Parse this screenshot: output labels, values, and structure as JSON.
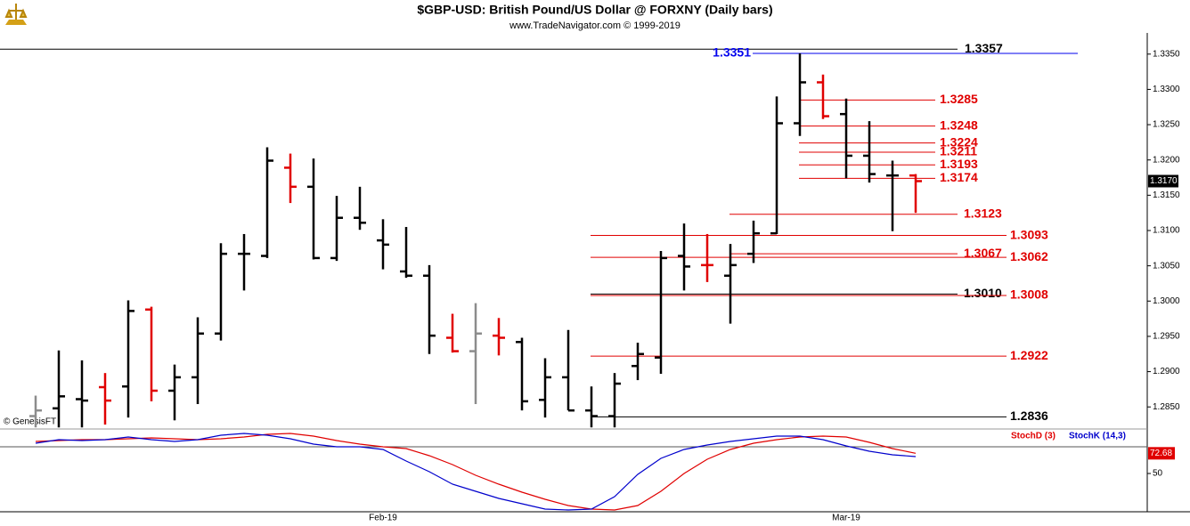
{
  "chart_data": [
    {
      "type": "ohlc",
      "title": "$GBP-USD:  British Pound/US Dollar @ FORXNY  (Daily bars)",
      "subtitle": "www.TradeNavigator.com © 1999-2019",
      "watermark": "© GenesisFT",
      "categories": [
        null,
        null,
        null,
        null,
        null,
        null,
        null,
        null,
        null,
        null,
        null,
        null,
        null,
        null,
        null,
        "Feb-19",
        null,
        null,
        null,
        null,
        null,
        null,
        null,
        null,
        null,
        null,
        null,
        null,
        null,
        null,
        null,
        null,
        null,
        null,
        null,
        "Mar-19",
        null,
        null,
        null
      ],
      "open": [
        1.2837,
        1.2848,
        1.2861,
        1.2878,
        1.2879,
        1.2988,
        1.2873,
        1.2892,
        1.2954,
        1.3067,
        1.3064,
        1.3189,
        1.3162,
        1.3061,
        1.3118,
        1.3086,
        1.3042,
        1.3036,
        1.2948,
        1.2929,
        1.2951,
        1.2942,
        1.286,
        1.2892,
        1.2845,
        1.2837,
        1.2908,
        1.292,
        1.3064,
        1.3051,
        1.3036,
        1.3067,
        1.3096,
        1.3252,
        1.331,
        1.3265,
        1.3206,
        1.3178,
        1.3178
      ],
      "high": [
        1.2866,
        1.293,
        1.2916,
        1.2898,
        1.3001,
        1.2992,
        1.291,
        1.2977,
        1.3082,
        1.3095,
        1.3218,
        1.3209,
        1.3202,
        1.3149,
        1.3162,
        1.3116,
        1.3105,
        1.3051,
        1.2982,
        1.2997,
        1.2976,
        1.2948,
        1.2919,
        1.2959,
        1.2879,
        1.2898,
        1.2941,
        1.3071,
        1.311,
        1.3095,
        1.3081,
        1.3114,
        1.329,
        1.3351,
        1.3321,
        1.3287,
        1.3255,
        1.3199,
        1.318
      ],
      "low": [
        1.2821,
        1.2821,
        1.2821,
        1.2825,
        1.2835,
        1.2858,
        1.2831,
        1.2854,
        1.2944,
        1.3015,
        1.3061,
        1.3139,
        1.3059,
        1.3057,
        1.3101,
        1.3045,
        1.3033,
        1.2925,
        1.2927,
        1.2854,
        1.2923,
        1.2845,
        1.2835,
        1.2845,
        1.2821,
        1.2821,
        1.2888,
        1.2897,
        1.3015,
        1.3027,
        1.2968,
        1.3054,
        1.3095,
        1.3234,
        1.3258,
        1.3174,
        1.3168,
        1.3099,
        1.3125
      ],
      "close": [
        1.2845,
        1.2865,
        1.2859,
        1.2859,
        1.2986,
        1.2873,
        1.2892,
        1.2954,
        1.3067,
        1.3067,
        1.3199,
        1.3162,
        1.3061,
        1.3118,
        1.3111,
        1.308,
        1.3036,
        1.2951,
        1.2929,
        1.2954,
        1.2948,
        1.2858,
        1.2892,
        1.2845,
        1.2837,
        1.2883,
        1.2925,
        1.3061,
        1.3049,
        1.3051,
        1.3051,
        1.3096,
        1.3252,
        1.331,
        1.3262,
        1.3206,
        1.318,
        1.3178,
        1.317
      ],
      "colors": [
        "#8c8c8c",
        "#000000",
        "#000000",
        "#e00000",
        "#000000",
        "#e00000",
        "#000000",
        "#000000",
        "#000000",
        "#000000",
        "#000000",
        "#e00000",
        "#000000",
        "#000000",
        "#000000",
        "#000000",
        "#000000",
        "#000000",
        "#e00000",
        "#8c8c8c",
        "#e00000",
        "#000000",
        "#000000",
        "#000000",
        "#000000",
        "#000000",
        "#000000",
        "#000000",
        "#000000",
        "#e00000",
        "#000000",
        "#000000",
        "#000000",
        "#000000",
        "#e00000",
        "#000000",
        "#000000",
        "#000000",
        "#e00000"
      ],
      "ylim": [
        1.282,
        1.338
      ],
      "yticks": [
        {
          "value": 1.285,
          "label": "1.2850"
        },
        {
          "value": 1.29,
          "label": "1.2900"
        },
        {
          "value": 1.295,
          "label": "1.2950"
        },
        {
          "value": 1.3,
          "label": "1.3000"
        },
        {
          "value": 1.305,
          "label": "1.3050"
        },
        {
          "value": 1.31,
          "label": "1.3100"
        },
        {
          "value": 1.315,
          "label": "1.3150"
        },
        {
          "value": 1.32,
          "label": "1.3200"
        },
        {
          "value": 1.325,
          "label": "1.3250"
        },
        {
          "value": 1.33,
          "label": "1.3300"
        },
        {
          "value": 1.335,
          "label": "1.3350"
        }
      ],
      "levels": [
        {
          "value": 1.3357,
          "label": "1.3357",
          "color": "#000000"
        },
        {
          "value": 1.3351,
          "label": "1.3351",
          "color": "#0000ee"
        },
        {
          "value": 1.3285,
          "label": "1.3285",
          "color": "#e00000"
        },
        {
          "value": 1.3248,
          "label": "1.3248",
          "color": "#e00000"
        },
        {
          "value": 1.3224,
          "label": "1.3224",
          "color": "#e00000"
        },
        {
          "value": 1.3211,
          "label": "1.3211",
          "color": "#e00000"
        },
        {
          "value": 1.3193,
          "label": "1.3193",
          "color": "#e00000"
        },
        {
          "value": 1.3174,
          "label": "1.3174",
          "color": "#e00000"
        },
        {
          "value": 1.3123,
          "label": "1.3123",
          "color": "#e00000"
        },
        {
          "value": 1.3093,
          "label": "1.3093",
          "color": "#e00000"
        },
        {
          "value": 1.3067,
          "label": "1.3067",
          "color": "#e00000"
        },
        {
          "value": 1.3062,
          "label": "1.3062",
          "color": "#e00000"
        },
        {
          "value": 1.301,
          "label": "1.3010",
          "color": "#000000"
        },
        {
          "value": 1.3008,
          "label": "1.3008",
          "color": "#e00000"
        },
        {
          "value": 1.2922,
          "label": "1.2922",
          "color": "#e00000"
        },
        {
          "value": 1.2836,
          "label": "1.2836",
          "color": "#000000"
        }
      ],
      "last_value": {
        "value": 1.317,
        "label": "1.3170"
      }
    },
    {
      "type": "line",
      "series": [
        {
          "name": "StochD (3)",
          "color": "#e00000",
          "values": [
            86,
            87,
            88,
            88,
            89,
            90,
            89,
            88,
            89,
            91,
            94,
            95,
            92,
            87,
            83,
            80,
            78,
            70,
            60,
            48,
            38,
            29,
            21,
            14,
            10,
            9,
            14,
            30,
            50,
            66,
            77,
            84,
            88,
            91,
            92,
            91,
            85,
            78,
            72.68
          ]
        },
        {
          "name": "StochK (14,3)",
          "color": "#0000cc",
          "values": [
            84,
            88,
            87,
            88,
            91,
            88,
            86,
            88,
            93,
            95,
            93,
            89,
            83,
            80,
            80,
            77,
            64,
            52,
            38,
            30,
            22,
            16,
            10,
            9,
            10,
            24,
            49,
            67,
            77,
            82,
            86,
            89,
            92,
            92,
            88,
            81,
            75,
            71,
            69
          ]
        }
      ],
      "ylim": [
        8,
        98
      ],
      "yticks": [
        50
      ],
      "reference_lines": [
        80
      ]
    }
  ]
}
